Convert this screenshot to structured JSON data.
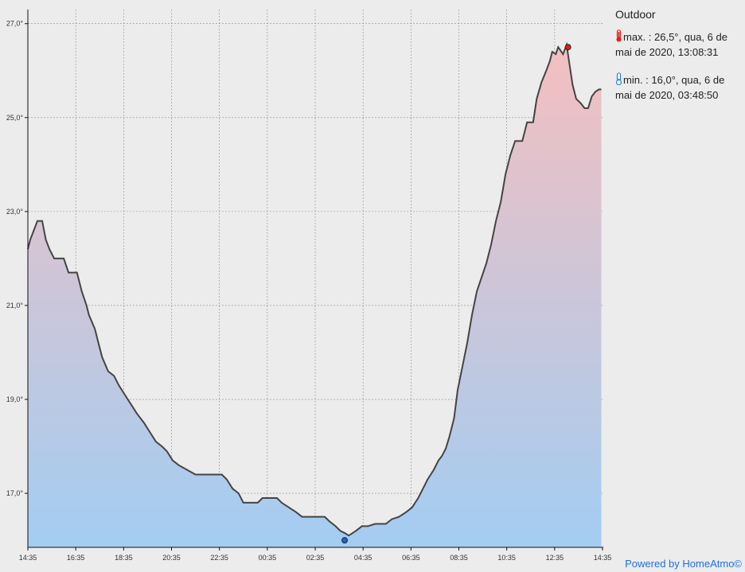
{
  "panel": {
    "title": "Outdoor",
    "max_text": "max. : 26,5°, qua, 6 de mai de 2020, 13:08:31",
    "min_text": "min. : 16,0°, qua, 6 de mai de 2020, 03:48:50",
    "max_icon": "thermometer-hot-icon",
    "min_icon": "thermometer-cold-icon"
  },
  "footer": {
    "powered": "Powered by HomeAtmo©"
  },
  "colors": {
    "line": "#444444",
    "fill_top": "#f4bfc0",
    "fill_bottom": "#a3cdf2",
    "max_marker": "#e41b1b",
    "min_marker": "#1e62d0",
    "max_icon": "#e41b1b",
    "min_icon": "#2a7de1"
  },
  "chart_data": {
    "type": "area",
    "title": "",
    "xlabel": "",
    "ylabel": "",
    "x_ticks": [
      "14:35",
      "16:35",
      "18:35",
      "20:35",
      "22:35",
      "00:35",
      "02:35",
      "04:35",
      "06:35",
      "08:35",
      "10:35",
      "12:35",
      "14:35"
    ],
    "y_ticks": [
      "17,0°",
      "19,0°",
      "21,0°",
      "23,0°",
      "25,0°",
      "27,0°"
    ],
    "ylim": [
      15.85,
      27.3
    ],
    "grid": true,
    "max_point": {
      "time": "13:08:31",
      "value": 26.5
    },
    "min_point": {
      "time": "03:48:50",
      "value": 16.0
    },
    "series": [
      {
        "values": [
          [
            0,
            22.2
          ],
          [
            0.1,
            22.4
          ],
          [
            0.25,
            22.6
          ],
          [
            0.4,
            22.8
          ],
          [
            0.6,
            22.8
          ],
          [
            0.75,
            22.4
          ],
          [
            0.9,
            22.2
          ],
          [
            1.1,
            22.0
          ],
          [
            1.5,
            22.0
          ],
          [
            1.7,
            21.7
          ],
          [
            2.05,
            21.7
          ],
          [
            2.25,
            21.3
          ],
          [
            2.45,
            21.0
          ],
          [
            2.55,
            20.8
          ],
          [
            2.8,
            20.5
          ],
          [
            2.95,
            20.2
          ],
          [
            3.1,
            19.9
          ],
          [
            3.35,
            19.6
          ],
          [
            3.6,
            19.5
          ],
          [
            3.8,
            19.3
          ],
          [
            4.05,
            19.1
          ],
          [
            4.3,
            18.9
          ],
          [
            4.55,
            18.7
          ],
          [
            4.85,
            18.5
          ],
          [
            5.1,
            18.3
          ],
          [
            5.35,
            18.1
          ],
          [
            5.6,
            18.0
          ],
          [
            5.8,
            17.9
          ],
          [
            6.05,
            17.7
          ],
          [
            6.3,
            17.6
          ],
          [
            6.65,
            17.5
          ],
          [
            7.0,
            17.4
          ],
          [
            8.1,
            17.4
          ],
          [
            8.3,
            17.3
          ],
          [
            8.55,
            17.1
          ],
          [
            8.8,
            17.0
          ],
          [
            9.0,
            16.8
          ],
          [
            9.6,
            16.8
          ],
          [
            9.8,
            16.9
          ],
          [
            10.4,
            16.9
          ],
          [
            10.6,
            16.8
          ],
          [
            10.9,
            16.7
          ],
          [
            11.2,
            16.6
          ],
          [
            11.45,
            16.5
          ],
          [
            12.4,
            16.5
          ],
          [
            12.6,
            16.4
          ],
          [
            12.85,
            16.3
          ],
          [
            13.05,
            16.2
          ],
          [
            13.25,
            16.15
          ],
          [
            13.4,
            16.1
          ],
          [
            13.55,
            16.15
          ],
          [
            13.7,
            16.2
          ],
          [
            13.95,
            16.3
          ],
          [
            14.2,
            16.3
          ],
          [
            14.5,
            16.35
          ],
          [
            14.95,
            16.35
          ],
          [
            15.2,
            16.45
          ],
          [
            15.5,
            16.5
          ],
          [
            15.8,
            16.6
          ],
          [
            16.05,
            16.7
          ],
          [
            16.3,
            16.9
          ],
          [
            16.5,
            17.1
          ],
          [
            16.7,
            17.3
          ],
          [
            16.95,
            17.5
          ],
          [
            17.15,
            17.7
          ],
          [
            17.3,
            17.8
          ],
          [
            17.45,
            17.95
          ],
          [
            17.6,
            18.2
          ],
          [
            17.8,
            18.6
          ],
          [
            17.95,
            19.2
          ],
          [
            18.15,
            19.7
          ],
          [
            18.35,
            20.2
          ],
          [
            18.55,
            20.8
          ],
          [
            18.75,
            21.3
          ],
          [
            18.95,
            21.6
          ],
          [
            19.15,
            21.9
          ],
          [
            19.35,
            22.3
          ],
          [
            19.55,
            22.8
          ],
          [
            19.75,
            23.2
          ],
          [
            19.95,
            23.8
          ],
          [
            20.15,
            24.2
          ],
          [
            20.35,
            24.5
          ],
          [
            20.65,
            24.5
          ],
          [
            20.85,
            24.9
          ],
          [
            21.1,
            24.9
          ],
          [
            21.25,
            25.4
          ],
          [
            21.45,
            25.75
          ],
          [
            21.65,
            26.0
          ],
          [
            21.8,
            26.2
          ],
          [
            21.9,
            26.4
          ],
          [
            22.05,
            26.35
          ],
          [
            22.15,
            26.5
          ],
          [
            22.35,
            26.35
          ],
          [
            22.5,
            26.55
          ],
          [
            22.6,
            26.2
          ],
          [
            22.75,
            25.7
          ],
          [
            22.9,
            25.4
          ],
          [
            23.1,
            25.3
          ],
          [
            23.25,
            25.2
          ],
          [
            23.4,
            25.2
          ],
          [
            23.55,
            25.45
          ],
          [
            23.7,
            25.55
          ],
          [
            23.85,
            25.6
          ],
          [
            23.95,
            25.6
          ]
        ]
      }
    ]
  }
}
